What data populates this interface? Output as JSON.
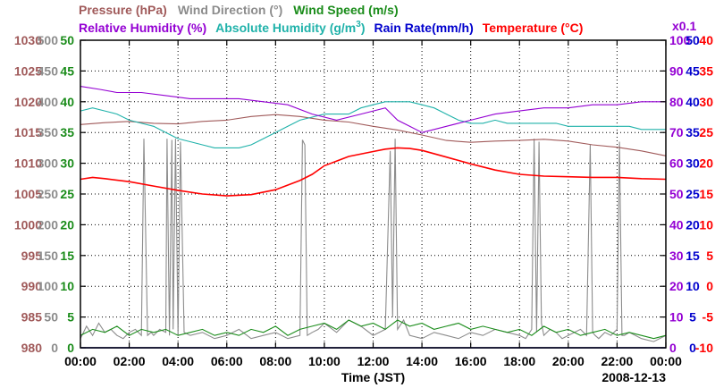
{
  "chart_data": {
    "type": "line",
    "date_label": "2008-12-13",
    "xlabel": "Time (JST)",
    "x_ticks": [
      "00:00",
      "02:00",
      "04:00",
      "06:00",
      "08:00",
      "10:00",
      "12:00",
      "14:00",
      "16:00",
      "18:00",
      "20:00",
      "22:00",
      "00:00"
    ],
    "xlim_hours": [
      0,
      24
    ],
    "legend": {
      "row1": [
        {
          "label": "Pressure (hPa)",
          "color": "#a05a5a"
        },
        {
          "label": "Wind Direction (°)",
          "color": "#8c8c8c"
        },
        {
          "label": "Wind Speed (m/s)",
          "color": "#1a8c1a"
        }
      ],
      "row2": [
        {
          "label": "Relative Humidity (%)",
          "color": "#9400d3"
        },
        {
          "label": "Absolute Humidity (g/m",
          "sup": "3",
          "tail": ")",
          "color": "#20b2aa"
        },
        {
          "label": "Rain Rate(mm/h)",
          "color": "#0000cd"
        },
        {
          "label": "Temperature (°C)",
          "color": "#ff0000"
        }
      ],
      "ah_scale_note": "x0.1"
    },
    "axes": {
      "pressure": {
        "color": "#a05a5a",
        "ylim": [
          980,
          1030
        ],
        "ticks": [
          "1030",
          "1025",
          "1020",
          "1015",
          "1010",
          "1005",
          "1000",
          "995",
          "990",
          "985",
          "980"
        ]
      },
      "wind_dir": {
        "color": "#8c8c8c",
        "ylim": [
          0,
          500
        ],
        "ticks": [
          "500",
          "450",
          "400",
          "350",
          "300",
          "250",
          "200",
          "150",
          "100",
          "50",
          "0"
        ]
      },
      "wind_speed": {
        "color": "#1a8c1a",
        "ylim": [
          0,
          50
        ],
        "ticks": [
          "50",
          "45",
          "40",
          "35",
          "30",
          "25",
          "20",
          "15",
          "10",
          "5",
          "0"
        ]
      },
      "humidity": {
        "color": "#9400d3",
        "ylim": [
          0,
          100
        ],
        "ticks": [
          "100",
          "90",
          "80",
          "70",
          "60",
          "50",
          "40",
          "30",
          "20",
          "10",
          "0"
        ]
      },
      "rain_rate": {
        "color": "#0000cd",
        "ylim": [
          0,
          50
        ],
        "ticks": [
          "50",
          "45",
          "40",
          "35",
          "30",
          "25",
          "20",
          "15",
          "10",
          "5",
          "0"
        ]
      },
      "temperature": {
        "color": "#ff0000",
        "ylim": [
          -10,
          40
        ],
        "ticks": [
          "40",
          "35",
          "30",
          "25",
          "20",
          "15",
          "10",
          "5",
          "0",
          "-5",
          "-10"
        ]
      }
    },
    "series": [
      {
        "name": "Pressure (hPa)",
        "color": "#a05a5a",
        "axis": "pressure",
        "x": [
          0,
          1,
          2,
          3,
          4,
          5,
          6,
          7,
          8,
          9,
          10,
          11,
          12,
          13,
          14,
          15,
          16,
          17,
          18,
          19,
          20,
          21,
          22,
          23,
          24
        ],
        "y": [
          1016.3,
          1016.6,
          1016.8,
          1016.5,
          1016.4,
          1016.8,
          1017.0,
          1017.6,
          1017.9,
          1017.6,
          1017.0,
          1016.7,
          1016.0,
          1015.4,
          1014.6,
          1013.7,
          1013.4,
          1013.6,
          1013.7,
          1013.9,
          1013.6,
          1013.0,
          1012.6,
          1012.0,
          1011.2
        ]
      },
      {
        "name": "Relative Humidity (%)",
        "color": "#9400d3",
        "axis": "humidity",
        "x": [
          0,
          0.8,
          1.5,
          2.5,
          3.5,
          4.5,
          5.5,
          6.5,
          7.5,
          8.5,
          9.5,
          10.5,
          11.5,
          12.5,
          13,
          13.5,
          14,
          14.5,
          15,
          16,
          17,
          18,
          19,
          20,
          21,
          22,
          23,
          24
        ],
        "y": [
          85,
          84,
          83,
          83,
          82,
          81,
          81,
          81,
          80,
          79,
          76,
          74,
          76,
          78,
          74,
          72,
          70,
          71,
          72,
          74,
          76,
          77,
          78,
          78,
          79,
          79,
          80,
          80
        ]
      },
      {
        "name": "Absolute Humidity (g/m3)",
        "color": "#20b2aa",
        "axis": "humidity",
        "x": [
          0,
          0.5,
          1,
          1.5,
          2,
          2.5,
          3,
          3.5,
          4,
          4.5,
          5,
          5.5,
          6,
          6.5,
          7,
          7.5,
          8,
          8.5,
          9,
          9.5,
          10,
          10.5,
          11,
          11.5,
          12,
          12.5,
          13,
          13.5,
          14,
          14.5,
          15,
          15.5,
          16,
          16.5,
          17,
          17.5,
          18,
          18.5,
          19,
          19.5,
          20,
          20.5,
          21,
          21.5,
          22,
          22.5,
          23,
          23.5,
          24
        ],
        "y": [
          77,
          78,
          77,
          76,
          74,
          73,
          72,
          70,
          68,
          67,
          66,
          65,
          65,
          65,
          66,
          68,
          70,
          72,
          74,
          75,
          76,
          76,
          76,
          78,
          79,
          80,
          80,
          80,
          79,
          78,
          76,
          74,
          73,
          73,
          74,
          73,
          73,
          73,
          73,
          73,
          72,
          72,
          72,
          72,
          72,
          72,
          71,
          71,
          71
        ]
      },
      {
        "name": "Temperature (°C)",
        "color": "#ff0000",
        "axis": "temperature",
        "x": [
          0,
          0.5,
          1,
          2,
          3,
          4,
          5,
          6,
          7,
          8,
          9,
          9.5,
          10,
          11,
          12,
          12.5,
          13,
          13.5,
          14,
          15,
          16,
          17,
          18,
          19,
          20,
          21,
          22,
          23,
          24
        ],
        "y": [
          17.4,
          17.7,
          17.5,
          17.0,
          16.3,
          15.6,
          15.0,
          14.7,
          14.9,
          15.7,
          17.2,
          18.2,
          19.6,
          21.1,
          21.9,
          22.3,
          22.5,
          22.4,
          22.1,
          21.0,
          19.9,
          18.9,
          18.2,
          17.9,
          17.8,
          17.7,
          17.7,
          17.5,
          17.4
        ]
      },
      {
        "name": "Wind Direction (°)",
        "color": "#8c8c8c",
        "axis": "wind_dir",
        "x": [
          0,
          0.25,
          0.5,
          0.75,
          1,
          1.25,
          1.5,
          1.75,
          2,
          2.25,
          2.5,
          2.6,
          2.75,
          2.9,
          3,
          3.25,
          3.5,
          3.55,
          3.65,
          3.75,
          3.8,
          3.9,
          4,
          4.1,
          4.25,
          4.5,
          5,
          5.5,
          6,
          6.5,
          7,
          7.5,
          8,
          8.5,
          9,
          9.1,
          9.2,
          9.3,
          9.5,
          9.75,
          10,
          10.5,
          11,
          11.5,
          12,
          12.5,
          12.7,
          12.8,
          12.9,
          13,
          13.25,
          13.5,
          14,
          14.5,
          15,
          15.5,
          16,
          16.5,
          17,
          17.5,
          18,
          18.25,
          18.5,
          18.6,
          18.7,
          18.8,
          18.9,
          19,
          19.25,
          19.5,
          19.75,
          20,
          20.25,
          20.5,
          20.75,
          20.9,
          21,
          21.1,
          21.25,
          21.5,
          21.75,
          22,
          22.1,
          22.2,
          22.3,
          22.5,
          23,
          23.5,
          24
        ],
        "y": [
          15,
          35,
          20,
          40,
          25,
          30,
          20,
          15,
          25,
          30,
          20,
          340,
          20,
          25,
          20,
          30,
          25,
          340,
          20,
          338,
          30,
          340,
          20,
          335,
          25,
          20,
          25,
          15,
          20,
          30,
          15,
          20,
          25,
          15,
          20,
          338,
          330,
          20,
          25,
          30,
          40,
          25,
          45,
          35,
          20,
          30,
          320,
          50,
          340,
          30,
          45,
          20,
          15,
          25,
          20,
          15,
          25,
          20,
          30,
          25,
          20,
          15,
          30,
          340,
          25,
          335,
          40,
          20,
          30,
          25,
          15,
          20,
          25,
          30,
          20,
          330,
          25,
          20,
          15,
          25,
          20,
          30,
          335,
          20,
          20,
          25,
          15,
          10,
          20
        ]
      },
      {
        "name": "Wind Speed (m/s)",
        "color": "#1a8c1a",
        "axis": "wind_speed",
        "x": [
          0,
          0.5,
          1,
          1.5,
          2,
          2.5,
          3,
          3.5,
          4,
          4.5,
          5,
          5.5,
          6,
          6.5,
          7,
          7.5,
          8,
          8.5,
          9,
          9.5,
          10,
          10.5,
          11,
          11.5,
          12,
          12.5,
          13,
          13.5,
          14,
          14.5,
          15,
          15.5,
          16,
          16.5,
          17,
          17.5,
          18,
          18.5,
          19,
          19.5,
          20,
          20.5,
          21,
          21.5,
          22,
          22.5,
          23,
          23.5,
          24
        ],
        "y": [
          2.0,
          3.0,
          2.5,
          3.5,
          2.0,
          3.0,
          2.5,
          3.0,
          2.0,
          2.5,
          3.0,
          2.0,
          2.5,
          2.0,
          3.0,
          2.5,
          3.5,
          2.0,
          3.0,
          3.5,
          4.0,
          3.0,
          4.5,
          3.5,
          4.0,
          3.0,
          4.5,
          3.5,
          4.0,
          3.0,
          3.5,
          4.0,
          3.0,
          3.5,
          3.0,
          2.5,
          3.0,
          2.0,
          3.5,
          2.5,
          3.0,
          2.0,
          2.5,
          3.0,
          2.0,
          2.5,
          2.0,
          1.5,
          2.0
        ]
      },
      {
        "name": "Rain Rate(mm/h)",
        "color": "#0000cd",
        "axis": "rain_rate",
        "x": [
          0,
          24
        ],
        "y": [
          0,
          0
        ]
      }
    ]
  }
}
